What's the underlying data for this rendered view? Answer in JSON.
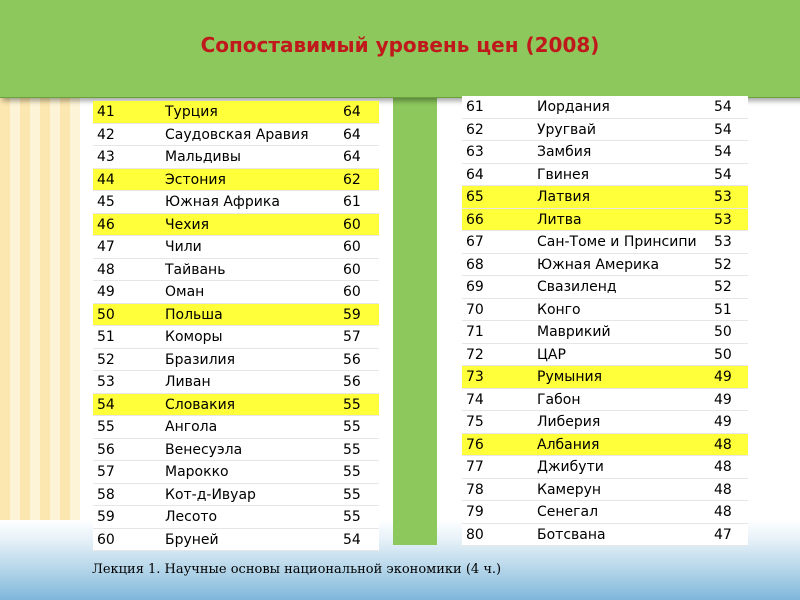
{
  "title": "Сопоставимый уровень цен (2008)",
  "footer": "Лекция 1. Научные основы национальной экономики (4 ч.)",
  "highlight_color": "#ffff3a",
  "left_table": [
    {
      "rank": "41",
      "country": "Турция",
      "value": "64",
      "highlight": true
    },
    {
      "rank": "42",
      "country": "Саудовская Аравия",
      "value": "64",
      "highlight": false
    },
    {
      "rank": "43",
      "country": "Мальдивы",
      "value": "64",
      "highlight": false
    },
    {
      "rank": "44",
      "country": "Эстония",
      "value": "62",
      "highlight": true
    },
    {
      "rank": "45",
      "country": "Южная Африка",
      "value": "61",
      "highlight": false
    },
    {
      "rank": "46",
      "country": "Чехия",
      "value": "60",
      "highlight": true
    },
    {
      "rank": "47",
      "country": "Чили",
      "value": "60",
      "highlight": false
    },
    {
      "rank": "48",
      "country": "Тайвань",
      "value": "60",
      "highlight": false
    },
    {
      "rank": "49",
      "country": "Оман",
      "value": "60",
      "highlight": false
    },
    {
      "rank": "50",
      "country": "Польша",
      "value": "59",
      "highlight": true
    },
    {
      "rank": "51",
      "country": "Коморы",
      "value": "57",
      "highlight": false
    },
    {
      "rank": "52",
      "country": "Бразилия",
      "value": "56",
      "highlight": false
    },
    {
      "rank": "53",
      "country": "Ливан",
      "value": "56",
      "highlight": false
    },
    {
      "rank": "54",
      "country": "Словакия",
      "value": "55",
      "highlight": true
    },
    {
      "rank": "55",
      "country": "Ангола",
      "value": "55",
      "highlight": false
    },
    {
      "rank": "56",
      "country": "Венесуэла",
      "value": "55",
      "highlight": false
    },
    {
      "rank": "57",
      "country": "Марокко",
      "value": "55",
      "highlight": false
    },
    {
      "rank": "58",
      "country": "Кот-д-Ивуар",
      "value": "55",
      "highlight": false
    },
    {
      "rank": "59",
      "country": "Лесото",
      "value": "55",
      "highlight": false
    },
    {
      "rank": "60",
      "country": "Бруней",
      "value": "54",
      "highlight": false
    }
  ],
  "right_table": [
    {
      "rank": "61",
      "country": "Иордания",
      "value": "54",
      "highlight": false
    },
    {
      "rank": "62",
      "country": "Уругвай",
      "value": "54",
      "highlight": false
    },
    {
      "rank": "63",
      "country": "Замбия",
      "value": "54",
      "highlight": false
    },
    {
      "rank": "64",
      "country": "Гвинея",
      "value": "54",
      "highlight": false
    },
    {
      "rank": "65",
      "country": "Латвия",
      "value": "53",
      "highlight": true
    },
    {
      "rank": "66",
      "country": "Литва",
      "value": "53",
      "highlight": true
    },
    {
      "rank": "67",
      "country": "Сан-Томе и Принсипи",
      "value": "53",
      "highlight": false
    },
    {
      "rank": "68",
      "country": "Южная Америка",
      "value": "52",
      "highlight": false
    },
    {
      "rank": "69",
      "country": "Свазиленд",
      "value": "52",
      "highlight": false
    },
    {
      "rank": "70",
      "country": "Конго",
      "value": "51",
      "highlight": false
    },
    {
      "rank": "71",
      "country": "Маврикий",
      "value": "50",
      "highlight": false
    },
    {
      "rank": "72",
      "country": "ЦАР",
      "value": "50",
      "highlight": false
    },
    {
      "rank": "73",
      "country": "Румыния",
      "value": "49",
      "highlight": true
    },
    {
      "rank": "74",
      "country": "Габон",
      "value": "49",
      "highlight": false
    },
    {
      "rank": "75",
      "country": "Либерия",
      "value": "49",
      "highlight": false
    },
    {
      "rank": "76",
      "country": "Албания",
      "value": "48",
      "highlight": true
    },
    {
      "rank": "77",
      "country": "Джибути",
      "value": "48",
      "highlight": false
    },
    {
      "rank": "78",
      "country": "Камерун",
      "value": "48",
      "highlight": false
    },
    {
      "rank": "79",
      "country": "Сенегал",
      "value": "48",
      "highlight": false
    },
    {
      "rank": "80",
      "country": "Ботсвана",
      "value": "47",
      "highlight": false
    }
  ]
}
